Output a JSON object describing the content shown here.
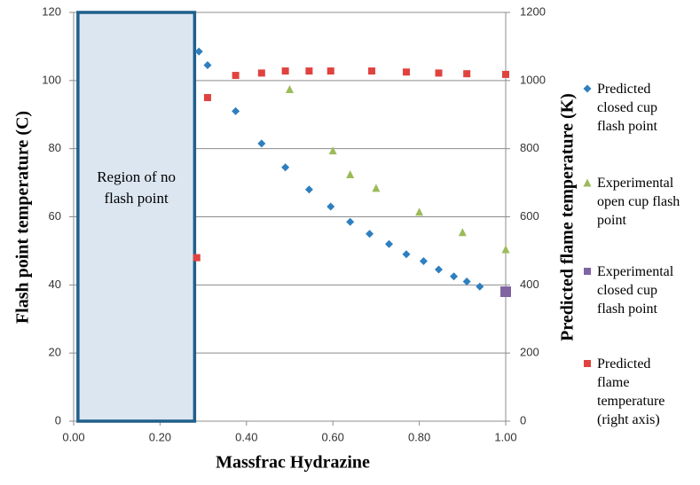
{
  "chart_data": {
    "type": "scatter",
    "x_label": "Massfrac Hydrazine",
    "y_label": "Flash point temperature (C)",
    "y2_label": "Predicted flame temperature (K)",
    "xlim": [
      0,
      1
    ],
    "ylim": [
      0,
      120
    ],
    "y2lim": [
      0,
      1200
    ],
    "xticks": [
      {
        "value": 0,
        "label": "0.00"
      },
      {
        "value": 0.2,
        "label": "0.20"
      },
      {
        "value": 0.4,
        "label": "0.40"
      },
      {
        "value": 0.6,
        "label": "0.60"
      },
      {
        "value": 0.8,
        "label": "0.80"
      },
      {
        "value": 1,
        "label": "1.00"
      }
    ],
    "yticks": [
      0,
      20,
      40,
      60,
      80,
      100,
      120
    ],
    "y2ticks": [
      0,
      200,
      400,
      600,
      800,
      1000,
      1200
    ],
    "grid": true,
    "region": {
      "label": "Region of no flash point",
      "xlim": [
        0.01,
        0.28
      ],
      "color": "#1f5f8b"
    },
    "series": [
      {
        "name": "Predicted closed cup flash point",
        "color": "#2e7fbf",
        "marker": "diamond",
        "x": [
          0.29,
          0.31,
          0.375,
          0.435,
          0.49,
          0.545,
          0.595,
          0.64,
          0.685,
          0.73,
          0.77,
          0.81,
          0.845,
          0.88,
          0.91,
          0.94
        ],
        "values": [
          108.5,
          104.5,
          91,
          81.5,
          74.5,
          68,
          63,
          58.5,
          55,
          52,
          49,
          47,
          44.5,
          42.5,
          41,
          39.5
        ]
      },
      {
        "name": "Experimental open cup flash point",
        "color": "#9bbb59",
        "marker": "triangle",
        "x": [
          0.5,
          0.6,
          0.64,
          0.7,
          0.8,
          0.9,
          1.0
        ],
        "values": [
          97.5,
          79.5,
          72.5,
          68.5,
          61.5,
          55.5,
          50.5
        ]
      },
      {
        "name": "Experimental closed cup flash point",
        "color": "#8064a2",
        "marker": "square",
        "x": [
          1.0
        ],
        "values": [
          38
        ]
      },
      {
        "name": "Predicted flame temperature (right axis)",
        "color": "#e0433f",
        "marker": "square",
        "axis": "y2",
        "x": [
          0.285,
          0.31,
          0.375,
          0.435,
          0.49,
          0.545,
          0.595,
          0.69,
          0.77,
          0.845,
          0.91,
          1.0
        ],
        "values": [
          480,
          950,
          1015,
          1022,
          1028,
          1028,
          1028,
          1028,
          1025,
          1022,
          1020,
          1018
        ]
      }
    ]
  }
}
